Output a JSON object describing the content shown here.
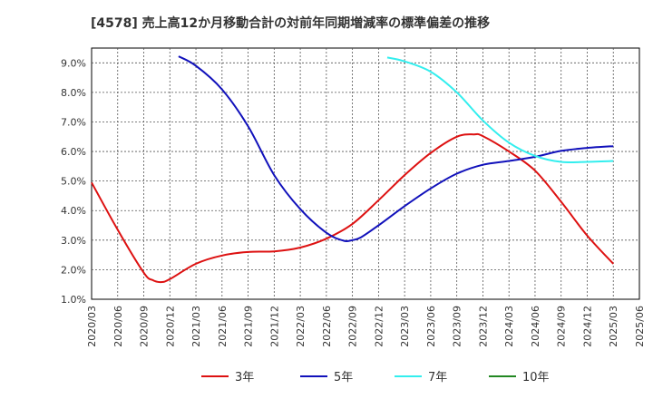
{
  "chart_data": {
    "type": "line",
    "title": "[4578]  売上高12か月移動合計の対前年同期増減率の標準偏差の推移",
    "xlabel": "",
    "ylabel": "",
    "x_ticks": [
      "2020/03",
      "2020/06",
      "2020/09",
      "2020/12",
      "2021/03",
      "2021/06",
      "2021/09",
      "2021/12",
      "2022/03",
      "2022/06",
      "2022/09",
      "2022/12",
      "2023/03",
      "2023/06",
      "2023/09",
      "2023/12",
      "2024/03",
      "2024/06",
      "2024/09",
      "2024/12",
      "2025/03",
      "2025/06"
    ],
    "y_ticks": [
      "1.0%",
      "2.0%",
      "3.0%",
      "4.0%",
      "5.0%",
      "6.0%",
      "7.0%",
      "8.0%",
      "9.0%"
    ],
    "ylim": [
      1.0,
      9.5
    ],
    "grid": true,
    "legend_position": "bottom",
    "series": [
      {
        "name": "3年",
        "color": "#dd1111",
        "points": [
          [
            "2020/03",
            4.95
          ],
          [
            "2020/06",
            3.35
          ],
          [
            "2020/09",
            1.9
          ],
          [
            "2020/10",
            1.65
          ],
          [
            "2020/11",
            1.58
          ],
          [
            "2020/12",
            1.68
          ],
          [
            "2021/03",
            2.2
          ],
          [
            "2021/06",
            2.48
          ],
          [
            "2021/09",
            2.6
          ],
          [
            "2021/12",
            2.62
          ],
          [
            "2022/03",
            2.75
          ],
          [
            "2022/06",
            3.05
          ],
          [
            "2022/09",
            3.55
          ],
          [
            "2022/12",
            4.35
          ],
          [
            "2023/03",
            5.2
          ],
          [
            "2023/06",
            5.95
          ],
          [
            "2023/09",
            6.5
          ],
          [
            "2023/11",
            6.58
          ],
          [
            "2023/12",
            6.52
          ],
          [
            "2024/03",
            6.0
          ],
          [
            "2024/06",
            5.35
          ],
          [
            "2024/09",
            4.3
          ],
          [
            "2024/12",
            3.15
          ],
          [
            "2025/03",
            2.2
          ]
        ]
      },
      {
        "name": "5年",
        "color": "#1111bb",
        "points": [
          [
            "2021/01",
            9.22
          ],
          [
            "2021/03",
            8.9
          ],
          [
            "2021/06",
            8.1
          ],
          [
            "2021/09",
            6.85
          ],
          [
            "2021/12",
            5.2
          ],
          [
            "2022/03",
            4.05
          ],
          [
            "2022/06",
            3.25
          ],
          [
            "2022/08",
            2.98
          ],
          [
            "2022/09",
            3.0
          ],
          [
            "2022/10",
            3.1
          ],
          [
            "2022/12",
            3.5
          ],
          [
            "2023/03",
            4.15
          ],
          [
            "2023/06",
            4.75
          ],
          [
            "2023/09",
            5.25
          ],
          [
            "2023/12",
            5.55
          ],
          [
            "2024/03",
            5.68
          ],
          [
            "2024/06",
            5.82
          ],
          [
            "2024/09",
            6.02
          ],
          [
            "2024/12",
            6.12
          ],
          [
            "2025/03",
            6.18
          ]
        ]
      },
      {
        "name": "7年",
        "color": "#33eeee",
        "points": [
          [
            "2023/01",
            9.18
          ],
          [
            "2023/03",
            9.05
          ],
          [
            "2023/06",
            8.7
          ],
          [
            "2023/09",
            8.0
          ],
          [
            "2023/12",
            7.05
          ],
          [
            "2024/03",
            6.3
          ],
          [
            "2024/06",
            5.85
          ],
          [
            "2024/09",
            5.65
          ],
          [
            "2024/12",
            5.65
          ],
          [
            "2025/03",
            5.68
          ]
        ]
      },
      {
        "name": "10年",
        "color": "#228822",
        "points": []
      }
    ]
  }
}
